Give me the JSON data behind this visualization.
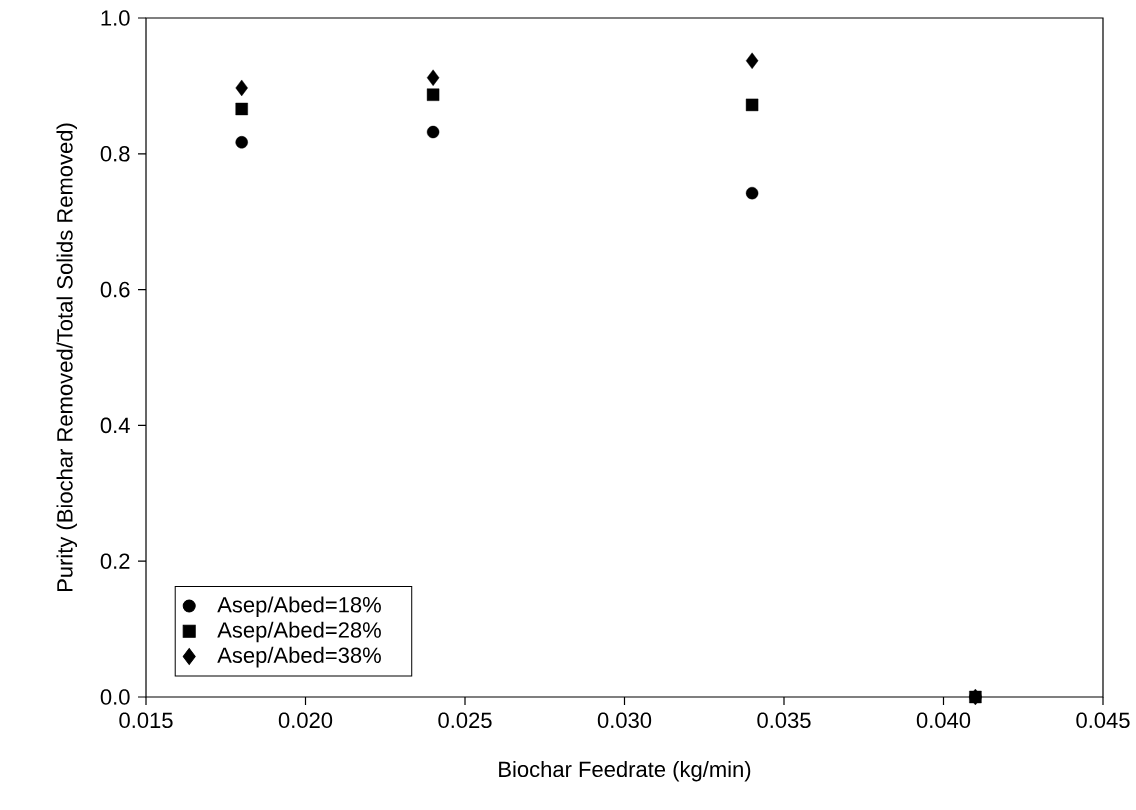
{
  "chart_data": {
    "type": "scatter",
    "xlabel": "Biochar Feedrate (kg/min)",
    "ylabel": "Purity (Biochar Removed/Total Solids Removed)",
    "x": [
      0.018,
      0.024,
      0.034,
      0.041
    ],
    "series": [
      {
        "name": "Asep/Abed=18%",
        "color": "#000000",
        "marker": "circle",
        "values": [
          0.817,
          0.832,
          0.742,
          0.0
        ]
      },
      {
        "name": "Asep/Abed=28%",
        "color": "#000000",
        "marker": "square",
        "values": [
          0.866,
          0.887,
          0.872,
          0.0
        ]
      },
      {
        "name": "Asep/Abed=38%",
        "color": "#000000",
        "marker": "diamond",
        "values": [
          0.897,
          0.912,
          0.937,
          0.0
        ]
      }
    ],
    "xlim": [
      0.015,
      0.045
    ],
    "ylim": [
      0.0,
      1.0
    ],
    "xticks": [
      {
        "value": 0.015,
        "label": "0.015"
      },
      {
        "value": 0.02,
        "label": "0.020"
      },
      {
        "value": 0.025,
        "label": "0.025"
      },
      {
        "value": 0.03,
        "label": "0.030"
      },
      {
        "value": 0.035,
        "label": "0.035"
      },
      {
        "value": 0.04,
        "label": "0.040"
      },
      {
        "value": 0.045,
        "label": "0.045"
      }
    ],
    "yticks": [
      {
        "value": 0.0,
        "label": "0.0"
      },
      {
        "value": 0.2,
        "label": "0.2"
      },
      {
        "value": 0.4,
        "label": "0.4"
      },
      {
        "value": 0.6,
        "label": "0.6"
      },
      {
        "value": 0.8,
        "label": "0.8"
      },
      {
        "value": 1.0,
        "label": "1.0"
      }
    ],
    "grid": false,
    "legend": "bottom left"
  }
}
